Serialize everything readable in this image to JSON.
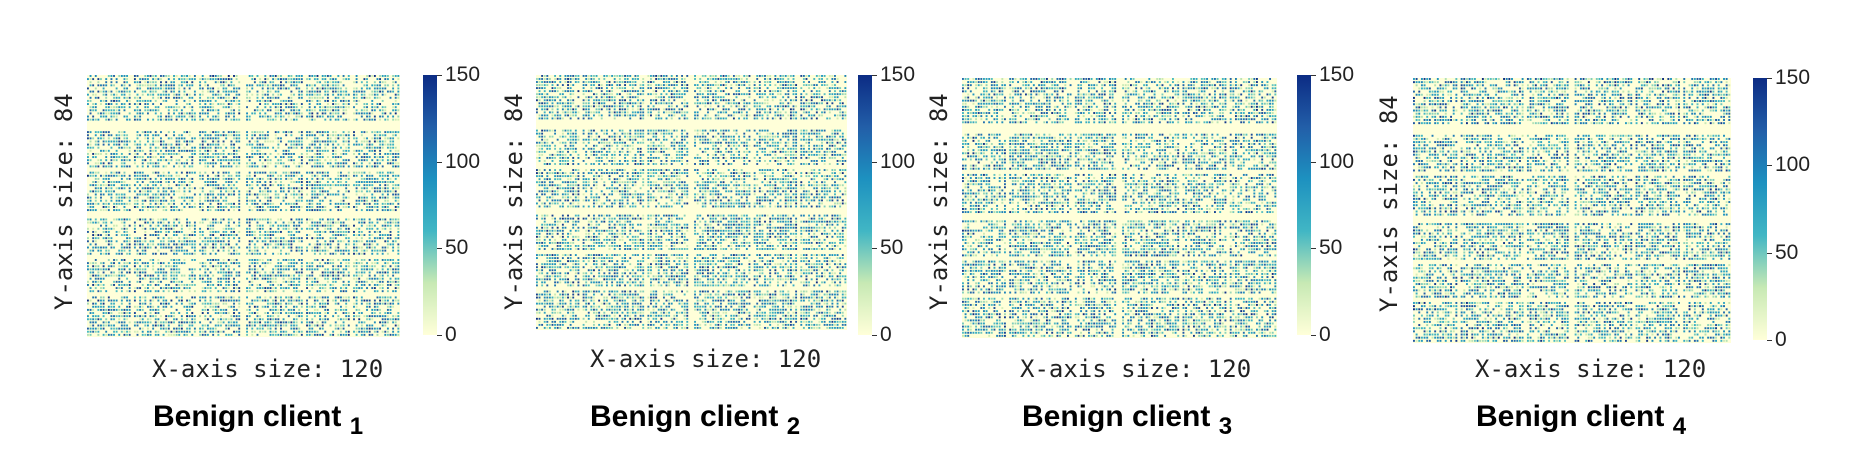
{
  "chart_data": [
    {
      "type": "heatmap",
      "title": "Benign client",
      "title_subscript": "1",
      "xlabel": "X-axis size: 120",
      "ylabel": "Y-axis size: 84",
      "colorbar": {
        "ticks": [
          "0",
          "50",
          "100",
          "150"
        ],
        "range": [
          0,
          150
        ],
        "colormap": [
          "#ffffd9",
          "#c7e9b4",
          "#41b6c4",
          "#1d91c0",
          "#225ea8",
          "#0c2c84"
        ]
      },
      "shape": [
        84,
        120
      ]
    },
    {
      "type": "heatmap",
      "title": "Benign client",
      "title_subscript": "2",
      "xlabel": "X-axis size: 120",
      "ylabel": "Y-axis size: 84",
      "colorbar": {
        "ticks": [
          "0",
          "50",
          "100",
          "150"
        ],
        "range": [
          0,
          150
        ],
        "colormap": [
          "#ffffd9",
          "#c7e9b4",
          "#41b6c4",
          "#1d91c0",
          "#225ea8",
          "#0c2c84"
        ]
      },
      "shape": [
        84,
        120
      ]
    },
    {
      "type": "heatmap",
      "title": "Benign client",
      "title_subscript": "3",
      "xlabel": "X-axis size: 120",
      "ylabel": "Y-axis size: 84",
      "colorbar": {
        "ticks": [
          "0",
          "50",
          "100",
          "150"
        ],
        "range": [
          0,
          150
        ],
        "colormap": [
          "#ffffd9",
          "#c7e9b4",
          "#41b6c4",
          "#1d91c0",
          "#225ea8",
          "#0c2c84"
        ]
      },
      "shape": [
        84,
        120
      ]
    },
    {
      "type": "heatmap",
      "title": "Benign client",
      "title_subscript": "4",
      "xlabel": "X-axis size: 120",
      "ylabel": "Y-axis size: 84",
      "colorbar": {
        "ticks": [
          "0",
          "50",
          "100",
          "150"
        ],
        "range": [
          0,
          150
        ],
        "colormap": [
          "#ffffd9",
          "#c7e9b4",
          "#41b6c4",
          "#1d91c0",
          "#225ea8",
          "#0c2c84"
        ]
      },
      "shape": [
        84,
        120
      ]
    }
  ]
}
